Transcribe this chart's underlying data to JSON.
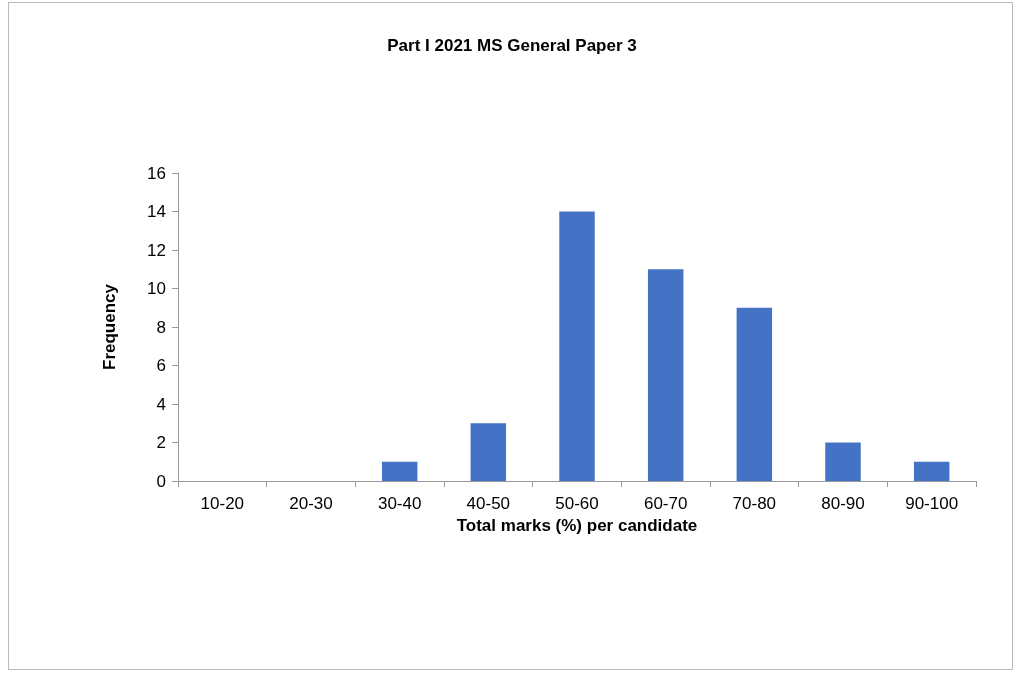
{
  "chart_data": {
    "type": "bar",
    "title": "Part I 2021 MS General Paper 3",
    "xlabel": "Total marks (%) per candidate",
    "ylabel": "Frequency",
    "categories": [
      "10-20",
      "20-30",
      "30-40",
      "40-50",
      "50-60",
      "60-70",
      "70-80",
      "80-90",
      "90-100"
    ],
    "values": [
      0,
      0,
      1,
      3,
      14,
      11,
      9,
      2,
      1
    ],
    "color": "#4472c4",
    "ylim": [
      0,
      16
    ],
    "yticks": [
      0,
      2,
      4,
      6,
      8,
      10,
      12,
      14,
      16
    ],
    "grid": false
  }
}
